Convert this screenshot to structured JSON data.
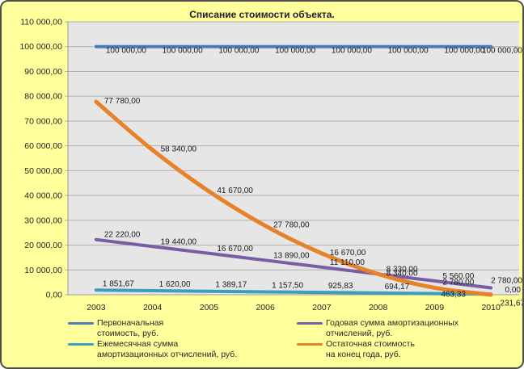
{
  "window": {
    "background_color": "#FFFF9C",
    "border_color": "#4d4d4d"
  },
  "chart_data": {
    "type": "line",
    "title": "Списание стоимости объекта.",
    "xlabel": "",
    "ylabel": "",
    "x_categories": [
      "2003",
      "2004",
      "2005",
      "2006",
      "2007",
      "2008",
      "2009",
      "2010"
    ],
    "ylim": [
      0,
      110000
    ],
    "y_tick_step": 10000,
    "y_tick_labels_top_to_bottom": [
      "110 000,00",
      "100 000,00",
      "90 000,00",
      "80 000,00",
      "70 000,00",
      "60 000,00",
      "50 000,00",
      "40 000,00",
      "30 000,00",
      "20 000,00",
      "10 000,00",
      "0,00"
    ],
    "grid": true,
    "legend_position": "bottom",
    "plot_bg_color": "#E6E6E6",
    "gridline_color": "#AFAFAF",
    "series": [
      {
        "name": "Первоначальная стоимость, руб.",
        "legend_line1": "Первоначальная",
        "legend_line2": "стоимость, руб.",
        "color": "#4A7EBB",
        "values": [
          100000,
          100000,
          100000,
          100000,
          100000,
          100000,
          100000,
          100000
        ],
        "labels": [
          "100 000,00",
          "100 000,00",
          "100 000,00",
          "100 000,00",
          "100 000,00",
          "100 000,00",
          "100 000,00",
          "100 000,00"
        ]
      },
      {
        "name": "Годовая сумма амортизационных отчислений, руб.",
        "legend_line1": "Годовая сумма амортизационных",
        "legend_line2": "отчислений, руб.",
        "color": "#7A5EA5",
        "values": [
          22220,
          19440,
          16670,
          13890,
          11110,
          8330,
          5560,
          2780
        ],
        "labels": [
          "22 220,00",
          "19 440,00",
          "16 670,00",
          "13 890,00",
          "11 110,00",
          "8 330,00",
          "5 560,00",
          "2 780,00"
        ]
      },
      {
        "name": "Ежемесячная сумма амортизационных отчислений, руб.",
        "legend_line1": "Ежемесячная сумма",
        "legend_line2": "амортизационных отчислений, руб.",
        "color": "#3A9FBE",
        "values": [
          1851.67,
          1620.0,
          1389.17,
          1157.5,
          925.83,
          694.17,
          463.33,
          231.67
        ],
        "labels": [
          "1 851,67",
          "1 620,00",
          "1 389,17",
          "1 157,50",
          "925,83",
          "694,17",
          "463,33",
          "231,67"
        ]
      },
      {
        "name": "Остаточная стоимость на конец года, руб.",
        "legend_line1": "Остаточная стоимость",
        "legend_line2": "на конец года, руб.",
        "color": "#E68228",
        "values": [
          77780,
          58340,
          41670,
          27780,
          16670,
          8340,
          2780,
          0
        ],
        "labels": [
          "77 780,00",
          "58 340,00",
          "41 670,00",
          "27 780,00",
          "16 670,00",
          "8 340,00",
          "2 780,00",
          "0,00"
        ]
      }
    ]
  }
}
